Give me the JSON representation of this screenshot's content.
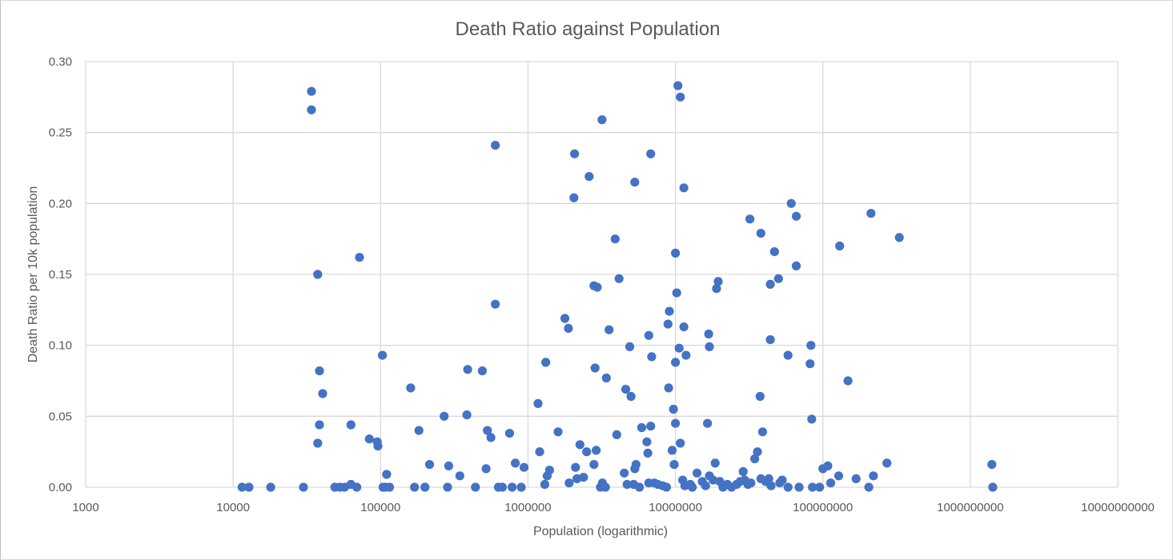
{
  "chart_data": {
    "type": "scatter",
    "title": "Death Ratio against Population",
    "xlabel": "Population (logarithmic)",
    "ylabel": "Death Ratio per 10k population",
    "xscale": "log",
    "xlim": [
      1000,
      10000000000
    ],
    "ylim": [
      0,
      0.3
    ],
    "x_ticks": [
      "1000",
      "10000",
      "100000",
      "1000000",
      "10000000",
      "100000000",
      "1000000000",
      "10000000000"
    ],
    "y_ticks": [
      "0.00",
      "0.05",
      "0.10",
      "0.15",
      "0.20",
      "0.25",
      "0.30"
    ],
    "grid": true,
    "legend": "none",
    "marker_color": "#4472C4",
    "points": [
      [
        34000,
        0.279
      ],
      [
        34000,
        0.266
      ],
      [
        37500,
        0.15
      ],
      [
        38500,
        0.082
      ],
      [
        40500,
        0.066
      ],
      [
        38500,
        0.044
      ],
      [
        37500,
        0.031
      ],
      [
        72000,
        0.162
      ],
      [
        63000,
        0.044
      ],
      [
        84000,
        0.034
      ],
      [
        95000,
        0.032
      ],
      [
        96000,
        0.029
      ],
      [
        103000,
        0.093
      ],
      [
        160000,
        0.07
      ],
      [
        182000,
        0.04
      ],
      [
        270000,
        0.05
      ],
      [
        385000,
        0.051
      ],
      [
        390000,
        0.083
      ],
      [
        490000,
        0.082
      ],
      [
        530000,
        0.04
      ],
      [
        560000,
        0.035
      ],
      [
        600000,
        0.241
      ],
      [
        600000,
        0.129
      ],
      [
        750000,
        0.038
      ],
      [
        1170000,
        0.059
      ],
      [
        1320000,
        0.088
      ],
      [
        1600000,
        0.039
      ],
      [
        1780000,
        0.119
      ],
      [
        1880000,
        0.112
      ],
      [
        2070000,
        0.235
      ],
      [
        2050000,
        0.204
      ],
      [
        2600000,
        0.219
      ],
      [
        2800000,
        0.142
      ],
      [
        2950000,
        0.141
      ],
      [
        3180000,
        0.259
      ],
      [
        3550000,
        0.111
      ],
      [
        3400000,
        0.077
      ],
      [
        2850000,
        0.084
      ],
      [
        3900000,
        0.175
      ],
      [
        4150000,
        0.147
      ],
      [
        4600000,
        0.069
      ],
      [
        4900000,
        0.099
      ],
      [
        5000000,
        0.064
      ],
      [
        5300000,
        0.215
      ],
      [
        6800000,
        0.235
      ],
      [
        6600000,
        0.107
      ],
      [
        6900000,
        0.092
      ],
      [
        9100000,
        0.124
      ],
      [
        8900000,
        0.115
      ],
      [
        9000000,
        0.07
      ],
      [
        9700000,
        0.055
      ],
      [
        10000000,
        0.165
      ],
      [
        10200000,
        0.137
      ],
      [
        10600000,
        0.098
      ],
      [
        10000000,
        0.088
      ],
      [
        10400000,
        0.283
      ],
      [
        10800000,
        0.275
      ],
      [
        11400000,
        0.211
      ],
      [
        11400000,
        0.113
      ],
      [
        11800000,
        0.093
      ],
      [
        10000000,
        0.045
      ],
      [
        16800000,
        0.108
      ],
      [
        17000000,
        0.099
      ],
      [
        16500000,
        0.045
      ],
      [
        19000000,
        0.14
      ],
      [
        19500000,
        0.145
      ],
      [
        32000000,
        0.189
      ],
      [
        38000000,
        0.179
      ],
      [
        37500000,
        0.064
      ],
      [
        44000000,
        0.143
      ],
      [
        44000000,
        0.104
      ],
      [
        47000000,
        0.166
      ],
      [
        50000000,
        0.147
      ],
      [
        58000000,
        0.093
      ],
      [
        61000000,
        0.2
      ],
      [
        66000000,
        0.191
      ],
      [
        66000000,
        0.156
      ],
      [
        83000000,
        0.1
      ],
      [
        82000000,
        0.087
      ],
      [
        84000000,
        0.048
      ],
      [
        130000000,
        0.17
      ],
      [
        148000000,
        0.075
      ],
      [
        212000000,
        0.193
      ],
      [
        330000000,
        0.176
      ],
      [
        11500,
        0.0
      ],
      [
        12800,
        0.0
      ],
      [
        18000,
        0.0
      ],
      [
        30000,
        0.0
      ],
      [
        49000,
        0.0
      ],
      [
        53000,
        0.0
      ],
      [
        57000,
        0.0
      ],
      [
        63000,
        0.002
      ],
      [
        69000,
        0.0
      ],
      [
        104000,
        0.0
      ],
      [
        108000,
        0.0
      ],
      [
        110000,
        0.009
      ],
      [
        115000,
        0.0
      ],
      [
        170000,
        0.0
      ],
      [
        200000,
        0.0
      ],
      [
        215000,
        0.016
      ],
      [
        285000,
        0.0
      ],
      [
        290000,
        0.015
      ],
      [
        345000,
        0.008
      ],
      [
        440000,
        0.0
      ],
      [
        520000,
        0.013
      ],
      [
        630000,
        0.0
      ],
      [
        670000,
        0.0
      ],
      [
        780000,
        0.0
      ],
      [
        820000,
        0.017
      ],
      [
        900000,
        0.0
      ],
      [
        940000,
        0.014
      ],
      [
        1200000,
        0.025
      ],
      [
        1300000,
        0.002
      ],
      [
        1350000,
        0.008
      ],
      [
        1400000,
        0.012
      ],
      [
        1900000,
        0.003
      ],
      [
        2100000,
        0.014
      ],
      [
        2150000,
        0.006
      ],
      [
        2250000,
        0.03
      ],
      [
        2380000,
        0.007
      ],
      [
        2500000,
        0.025
      ],
      [
        2800000,
        0.016
      ],
      [
        2900000,
        0.026
      ],
      [
        3100000,
        0.0
      ],
      [
        3200000,
        0.003
      ],
      [
        3350000,
        0.0
      ],
      [
        4000000,
        0.037
      ],
      [
        4500000,
        0.01
      ],
      [
        4700000,
        0.002
      ],
      [
        5200000,
        0.002
      ],
      [
        5300000,
        0.013
      ],
      [
        5400000,
        0.016
      ],
      [
        5700000,
        0.0
      ],
      [
        5900000,
        0.042
      ],
      [
        6400000,
        0.032
      ],
      [
        6500000,
        0.024
      ],
      [
        6800000,
        0.043
      ],
      [
        6600000,
        0.003
      ],
      [
        7200000,
        0.003
      ],
      [
        7600000,
        0.002
      ],
      [
        8200000,
        0.001
      ],
      [
        8700000,
        0.0
      ],
      [
        9500000,
        0.026
      ],
      [
        9800000,
        0.016
      ],
      [
        10800000,
        0.031
      ],
      [
        11200000,
        0.005
      ],
      [
        11600000,
        0.001
      ],
      [
        12600000,
        0.002
      ],
      [
        13000000,
        0.0
      ],
      [
        14000000,
        0.01
      ],
      [
        15200000,
        0.004
      ],
      [
        16000000,
        0.001
      ],
      [
        17000000,
        0.008
      ],
      [
        18000000,
        0.005
      ],
      [
        18600000,
        0.017
      ],
      [
        20000000,
        0.004
      ],
      [
        21000000,
        0.0
      ],
      [
        22500000,
        0.002
      ],
      [
        24000000,
        0.0
      ],
      [
        26000000,
        0.002
      ],
      [
        27500000,
        0.004
      ],
      [
        28800000,
        0.011
      ],
      [
        29500000,
        0.005
      ],
      [
        31000000,
        0.002
      ],
      [
        32500000,
        0.003
      ],
      [
        34500000,
        0.02
      ],
      [
        36000000,
        0.025
      ],
      [
        38000000,
        0.006
      ],
      [
        39000000,
        0.039
      ],
      [
        41000000,
        0.004
      ],
      [
        43000000,
        0.006
      ],
      [
        44500000,
        0.001
      ],
      [
        51000000,
        0.003
      ],
      [
        53000000,
        0.005
      ],
      [
        58000000,
        0.0
      ],
      [
        69000000,
        0.0
      ],
      [
        85000000,
        0.0
      ],
      [
        95000000,
        0.0
      ],
      [
        100000000,
        0.013
      ],
      [
        108000000,
        0.015
      ],
      [
        113000000,
        0.003
      ],
      [
        128000000,
        0.008
      ],
      [
        168000000,
        0.006
      ],
      [
        205000000,
        0.0
      ],
      [
        220000000,
        0.008
      ],
      [
        272000000,
        0.017
      ],
      [
        1400000000,
        0.016
      ],
      [
        1420000000,
        0.0
      ]
    ]
  }
}
